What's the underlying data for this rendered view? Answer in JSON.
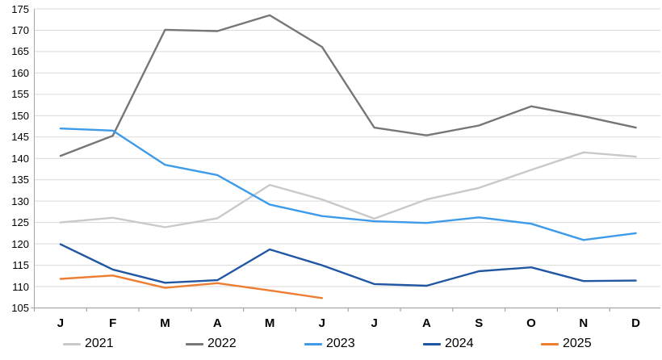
{
  "chart_data": {
    "type": "line",
    "title": "",
    "xlabel": "",
    "ylabel": "",
    "categories": [
      "J",
      "F",
      "M",
      "A",
      "M",
      "J",
      "J",
      "A",
      "S",
      "O",
      "N",
      "D"
    ],
    "ylim": [
      105,
      175
    ],
    "y_ticks": [
      105,
      110,
      115,
      120,
      125,
      130,
      135,
      140,
      145,
      150,
      155,
      160,
      165,
      170,
      175
    ],
    "grid": true,
    "legend_position": "bottom",
    "axis_color": "#a6a6a6",
    "gridline_color": "#d9d9d9",
    "series": [
      {
        "name": "2021",
        "color": "#c9c9c9",
        "values": [
          125.0,
          126.1,
          123.9,
          126.0,
          133.8,
          130.4,
          125.9,
          130.4,
          133.1,
          137.3,
          141.4,
          140.4
        ]
      },
      {
        "name": "2022",
        "color": "#767676",
        "values": [
          140.6,
          145.3,
          170.1,
          169.8,
          173.5,
          166.1,
          147.2,
          145.4,
          147.7,
          152.2,
          149.9,
          147.2
        ]
      },
      {
        "name": "2023",
        "color": "#3e9be9",
        "values": [
          147.0,
          146.5,
          138.5,
          136.1,
          129.2,
          126.5,
          125.3,
          124.9,
          126.2,
          124.7,
          120.9,
          122.5
        ]
      },
      {
        "name": "2024",
        "color": "#2056a2",
        "values": [
          119.9,
          114.0,
          110.9,
          111.5,
          118.7,
          115.0,
          110.6,
          110.2,
          113.6,
          114.5,
          111.3,
          111.4
        ]
      },
      {
        "name": "2025",
        "color": "#ed7d31",
        "values": [
          111.8,
          112.6,
          109.7,
          110.8,
          109.1,
          107.3
        ]
      }
    ]
  }
}
